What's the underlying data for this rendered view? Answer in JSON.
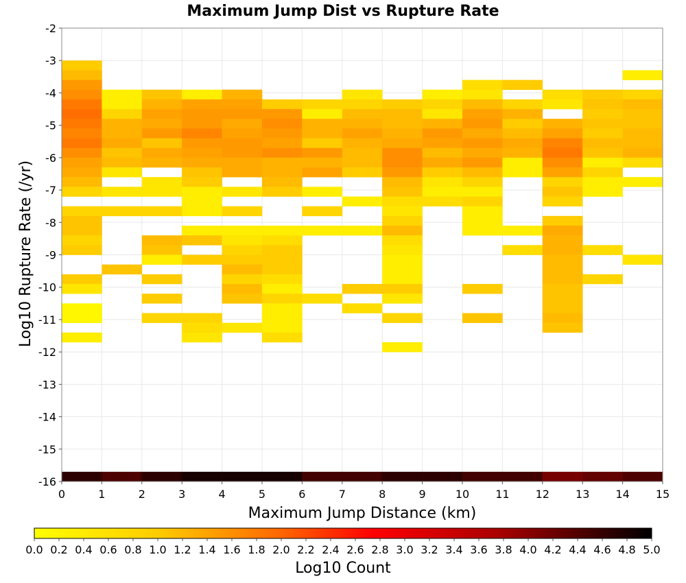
{
  "chart_data": {
    "type": "heatmap",
    "title": "Maximum Jump Dist vs Rupture Rate",
    "xlabel": "Maximum Jump Distance (km)",
    "ylabel": "Log10 Rupture Rate (/yr)",
    "xlim": [
      0,
      15
    ],
    "ylim": [
      -16,
      -2
    ],
    "x_ticks": [
      0,
      1,
      2,
      3,
      4,
      5,
      6,
      7,
      8,
      9,
      10,
      11,
      12,
      13,
      14,
      15
    ],
    "y_ticks": [
      -16,
      -15,
      -14,
      -13,
      -12,
      -11,
      -10,
      -9,
      -8,
      -7,
      -6,
      -5,
      -4,
      -3,
      -2
    ],
    "x_bin_width": 1,
    "y_bin_height": 0.3,
    "grid": true,
    "colorbar": {
      "label": "Log10 Count",
      "range": [
        0.0,
        5.0
      ],
      "ticks": [
        "0.0",
        "0.2",
        "0.4",
        "0.6",
        "0.8",
        "1.0",
        "1.2",
        "1.4",
        "1.6",
        "1.8",
        "2.0",
        "2.2",
        "2.4",
        "2.6",
        "2.8",
        "3.0",
        "3.2",
        "3.4",
        "3.6",
        "3.8",
        "4.0",
        "4.2",
        "4.4",
        "4.6",
        "4.8",
        "5.0"
      ],
      "placement": "bottom",
      "colors": [
        "#ffff00",
        "#ff9900",
        "#ff0000",
        "#990000",
        "#000000"
      ]
    },
    "cell_fields": [
      "x_start",
      "y_start",
      "log10_count"
    ],
    "cells": [
      [
        0,
        -3.3,
        0.6
      ],
      [
        0,
        -3.6,
        0.8
      ],
      [
        0,
        -3.9,
        1.2
      ],
      [
        0,
        -4.2,
        1.3
      ],
      [
        0,
        -4.5,
        1.5
      ],
      [
        0,
        -4.8,
        1.6
      ],
      [
        0,
        -5.1,
        1.5
      ],
      [
        0,
        -5.4,
        1.4
      ],
      [
        0,
        -5.7,
        1.5
      ],
      [
        0,
        -6.0,
        1.3
      ],
      [
        0,
        -6.3,
        1.1
      ],
      [
        0,
        -6.6,
        1.0
      ],
      [
        0,
        -6.9,
        0.8
      ],
      [
        0,
        -7.2,
        0.5
      ],
      [
        0,
        -7.8,
        0.5
      ],
      [
        0,
        -8.1,
        0.7
      ],
      [
        0,
        -8.4,
        0.7
      ],
      [
        0,
        -8.7,
        0.5
      ],
      [
        0,
        -9.0,
        0.6
      ],
      [
        0,
        -9.9,
        0.6
      ],
      [
        0,
        -10.2,
        0.3
      ],
      [
        0,
        -10.8,
        0.1
      ],
      [
        0,
        -11.1,
        0.1
      ],
      [
        0,
        -11.7,
        0.2
      ],
      [
        0,
        -16.0,
        4.6
      ],
      [
        1,
        -4.2,
        0.2
      ],
      [
        1,
        -4.5,
        0.2
      ],
      [
        1,
        -4.8,
        0.5
      ],
      [
        1,
        -5.1,
        0.9
      ],
      [
        1,
        -5.4,
        0.9
      ],
      [
        1,
        -5.7,
        1.0
      ],
      [
        1,
        -6.0,
        0.7
      ],
      [
        1,
        -6.3,
        0.8
      ],
      [
        1,
        -6.6,
        0.3
      ],
      [
        1,
        -7.2,
        0.3
      ],
      [
        1,
        -7.8,
        0.5
      ],
      [
        1,
        -9.6,
        0.7
      ],
      [
        1,
        -16.0,
        4.3
      ],
      [
        2,
        -4.2,
        0.7
      ],
      [
        2,
        -4.5,
        0.9
      ],
      [
        2,
        -4.8,
        1.1
      ],
      [
        2,
        -5.1,
        1.0
      ],
      [
        2,
        -5.4,
        1.2
      ],
      [
        2,
        -5.7,
        0.7
      ],
      [
        2,
        -6.0,
        1.0
      ],
      [
        2,
        -6.3,
        0.9
      ],
      [
        2,
        -6.9,
        0.3
      ],
      [
        2,
        -7.2,
        0.3
      ],
      [
        2,
        -7.8,
        0.5
      ],
      [
        2,
        -8.7,
        0.8
      ],
      [
        2,
        -9.0,
        0.7
      ],
      [
        2,
        -9.3,
        0.2
      ],
      [
        2,
        -9.9,
        0.6
      ],
      [
        2,
        -10.5,
        0.6
      ],
      [
        2,
        -11.1,
        0.5
      ],
      [
        2,
        -16.0,
        4.6
      ],
      [
        3,
        -4.2,
        0.2
      ],
      [
        3,
        -4.5,
        1.1
      ],
      [
        3,
        -4.8,
        1.2
      ],
      [
        3,
        -5.1,
        1.2
      ],
      [
        3,
        -5.4,
        1.4
      ],
      [
        3,
        -5.7,
        1.2
      ],
      [
        3,
        -6.0,
        1.1
      ],
      [
        3,
        -6.3,
        1.0
      ],
      [
        3,
        -6.6,
        0.7
      ],
      [
        3,
        -6.9,
        0.6
      ],
      [
        3,
        -7.2,
        0.2
      ],
      [
        3,
        -7.5,
        0.2
      ],
      [
        3,
        -7.8,
        0.2
      ],
      [
        3,
        -8.4,
        0.2
      ],
      [
        3,
        -8.7,
        0.7
      ],
      [
        3,
        -9.3,
        0.6
      ],
      [
        3,
        -11.1,
        0.5
      ],
      [
        3,
        -11.4,
        0.4
      ],
      [
        3,
        -11.7,
        0.3
      ],
      [
        3,
        -16.0,
        4.8
      ],
      [
        4,
        -4.2,
        0.9
      ],
      [
        4,
        -4.5,
        1.1
      ],
      [
        4,
        -4.8,
        1.2
      ],
      [
        4,
        -5.1,
        1.0
      ],
      [
        4,
        -5.4,
        1.1
      ],
      [
        4,
        -5.7,
        1.2
      ],
      [
        4,
        -6.0,
        1.2
      ],
      [
        4,
        -6.3,
        1.0
      ],
      [
        4,
        -6.6,
        1.0
      ],
      [
        4,
        -7.2,
        0.3
      ],
      [
        4,
        -7.8,
        0.5
      ],
      [
        4,
        -8.4,
        0.2
      ],
      [
        4,
        -8.7,
        0.3
      ],
      [
        4,
        -9.0,
        0.5
      ],
      [
        4,
        -9.3,
        0.6
      ],
      [
        4,
        -9.6,
        0.8
      ],
      [
        4,
        -9.9,
        0.5
      ],
      [
        4,
        -10.2,
        0.8
      ],
      [
        4,
        -10.5,
        0.7
      ],
      [
        4,
        -11.4,
        0.3
      ],
      [
        4,
        -16.0,
        4.8
      ],
      [
        5,
        -4.5,
        0.6
      ],
      [
        5,
        -4.8,
        1.2
      ],
      [
        5,
        -5.1,
        1.3
      ],
      [
        5,
        -5.4,
        1.2
      ],
      [
        5,
        -5.7,
        1.1
      ],
      [
        5,
        -6.0,
        1.3
      ],
      [
        5,
        -6.3,
        0.9
      ],
      [
        5,
        -6.6,
        0.9
      ],
      [
        5,
        -6.9,
        0.8
      ],
      [
        5,
        -7.2,
        0.6
      ],
      [
        5,
        -8.4,
        0.2
      ],
      [
        5,
        -8.7,
        0.4
      ],
      [
        5,
        -9.0,
        0.6
      ],
      [
        5,
        -9.3,
        0.6
      ],
      [
        5,
        -9.6,
        0.6
      ],
      [
        5,
        -9.9,
        0.4
      ],
      [
        5,
        -10.2,
        0.2
      ],
      [
        5,
        -10.5,
        0.5
      ],
      [
        5,
        -10.8,
        0.2
      ],
      [
        5,
        -11.1,
        0.2
      ],
      [
        5,
        -11.4,
        0.2
      ],
      [
        5,
        -11.7,
        0.4
      ],
      [
        5,
        -16.0,
        4.8
      ],
      [
        6,
        -4.5,
        0.5
      ],
      [
        6,
        -4.8,
        0.2
      ],
      [
        6,
        -5.1,
        0.9
      ],
      [
        6,
        -5.4,
        0.9
      ],
      [
        6,
        -5.7,
        0.6
      ],
      [
        6,
        -6.0,
        1.2
      ],
      [
        6,
        -6.3,
        0.9
      ],
      [
        6,
        -6.6,
        1.1
      ],
      [
        6,
        -7.2,
        0.2
      ],
      [
        6,
        -7.8,
        0.5
      ],
      [
        6,
        -8.4,
        0.2
      ],
      [
        6,
        -10.5,
        0.4
      ],
      [
        6,
        -16.0,
        4.4
      ],
      [
        7,
        -4.2,
        0.3
      ],
      [
        7,
        -4.5,
        0.5
      ],
      [
        7,
        -4.8,
        0.8
      ],
      [
        7,
        -5.1,
        0.9
      ],
      [
        7,
        -5.4,
        1.1
      ],
      [
        7,
        -5.7,
        0.9
      ],
      [
        7,
        -6.0,
        0.8
      ],
      [
        7,
        -6.3,
        0.8
      ],
      [
        7,
        -6.6,
        0.6
      ],
      [
        7,
        -7.5,
        0.2
      ],
      [
        7,
        -8.4,
        0.2
      ],
      [
        7,
        -10.2,
        0.6
      ],
      [
        7,
        -10.8,
        0.4
      ],
      [
        7,
        -16.0,
        4.4
      ],
      [
        8,
        -4.5,
        0.6
      ],
      [
        8,
        -4.8,
        0.8
      ],
      [
        8,
        -5.1,
        0.8
      ],
      [
        8,
        -5.4,
        0.9
      ],
      [
        8,
        -5.7,
        1.0
      ],
      [
        8,
        -6.0,
        1.3
      ],
      [
        8,
        -6.3,
        1.3
      ],
      [
        8,
        -6.6,
        1.2
      ],
      [
        8,
        -6.9,
        0.8
      ],
      [
        8,
        -7.2,
        0.7
      ],
      [
        8,
        -7.5,
        0.4
      ],
      [
        8,
        -7.8,
        0.3
      ],
      [
        8,
        -8.1,
        0.5
      ],
      [
        8,
        -8.4,
        0.8
      ],
      [
        8,
        -8.7,
        0.4
      ],
      [
        8,
        -9.0,
        0.3
      ],
      [
        8,
        -9.3,
        0.2
      ],
      [
        8,
        -9.6,
        0.2
      ],
      [
        8,
        -9.9,
        0.2
      ],
      [
        8,
        -10.2,
        0.6
      ],
      [
        8,
        -10.5,
        0.3
      ],
      [
        8,
        -11.1,
        0.5
      ],
      [
        8,
        -12.0,
        0.2
      ],
      [
        8,
        -16.0,
        4.6
      ],
      [
        9,
        -4.2,
        0.2
      ],
      [
        9,
        -4.5,
        0.5
      ],
      [
        9,
        -4.8,
        0.3
      ],
      [
        9,
        -5.1,
        0.9
      ],
      [
        9,
        -5.4,
        1.2
      ],
      [
        9,
        -5.7,
        1.1
      ],
      [
        9,
        -6.0,
        0.8
      ],
      [
        9,
        -6.3,
        1.0
      ],
      [
        9,
        -6.6,
        0.6
      ],
      [
        9,
        -6.9,
        0.3
      ],
      [
        9,
        -7.2,
        0.2
      ],
      [
        9,
        -7.5,
        0.4
      ],
      [
        9,
        -16.0,
        4.6
      ],
      [
        10,
        -3.9,
        0.4
      ],
      [
        10,
        -4.2,
        0.3
      ],
      [
        10,
        -4.5,
        0.8
      ],
      [
        10,
        -4.8,
        1.1
      ],
      [
        10,
        -5.1,
        1.2
      ],
      [
        10,
        -5.4,
        1.0
      ],
      [
        10,
        -5.7,
        1.2
      ],
      [
        10,
        -6.0,
        1.0
      ],
      [
        10,
        -6.3,
        1.2
      ],
      [
        10,
        -6.6,
        0.8
      ],
      [
        10,
        -6.9,
        0.5
      ],
      [
        10,
        -7.2,
        0.2
      ],
      [
        10,
        -7.5,
        0.5
      ],
      [
        10,
        -7.8,
        0.2
      ],
      [
        10,
        -8.1,
        0.2
      ],
      [
        10,
        -8.4,
        0.2
      ],
      [
        10,
        -10.2,
        0.6
      ],
      [
        10,
        -11.1,
        0.7
      ],
      [
        10,
        -16.0,
        4.4
      ],
      [
        11,
        -3.9,
        0.6
      ],
      [
        11,
        -4.5,
        0.5
      ],
      [
        11,
        -4.8,
        0.9
      ],
      [
        11,
        -5.1,
        0.6
      ],
      [
        11,
        -5.4,
        0.8
      ],
      [
        11,
        -5.7,
        1.0
      ],
      [
        11,
        -6.0,
        0.9
      ],
      [
        11,
        -6.3,
        0.2
      ],
      [
        11,
        -6.6,
        0.2
      ],
      [
        11,
        -8.4,
        0.2
      ],
      [
        11,
        -9.0,
        0.4
      ],
      [
        11,
        -16.0,
        4.4
      ],
      [
        12,
        -4.2,
        0.4
      ],
      [
        12,
        -4.5,
        0.3
      ],
      [
        12,
        -5.1,
        0.9
      ],
      [
        12,
        -5.4,
        1.1
      ],
      [
        12,
        -5.7,
        1.4
      ],
      [
        12,
        -6.0,
        1.5
      ],
      [
        12,
        -6.3,
        1.3
      ],
      [
        12,
        -6.6,
        1.1
      ],
      [
        12,
        -6.9,
        0.5
      ],
      [
        12,
        -7.2,
        0.7
      ],
      [
        12,
        -7.5,
        0.5
      ],
      [
        12,
        -8.1,
        0.6
      ],
      [
        12,
        -8.4,
        1.0
      ],
      [
        12,
        -8.7,
        0.9
      ],
      [
        12,
        -9.0,
        0.9
      ],
      [
        12,
        -9.3,
        0.8
      ],
      [
        12,
        -9.6,
        0.8
      ],
      [
        12,
        -9.9,
        0.8
      ],
      [
        12,
        -10.2,
        0.7
      ],
      [
        12,
        -10.5,
        0.7
      ],
      [
        12,
        -10.8,
        0.7
      ],
      [
        12,
        -11.1,
        0.8
      ],
      [
        12,
        -11.4,
        0.7
      ],
      [
        12,
        -16.0,
        3.9
      ],
      [
        13,
        -4.2,
        0.6
      ],
      [
        13,
        -4.5,
        0.7
      ],
      [
        13,
        -4.8,
        0.6
      ],
      [
        13,
        -5.1,
        0.7
      ],
      [
        13,
        -5.4,
        0.6
      ],
      [
        13,
        -5.7,
        0.8
      ],
      [
        13,
        -6.0,
        0.7
      ],
      [
        13,
        -6.3,
        0.2
      ],
      [
        13,
        -6.6,
        0.5
      ],
      [
        13,
        -6.9,
        0.2
      ],
      [
        13,
        -7.2,
        0.2
      ],
      [
        13,
        -9.0,
        0.4
      ],
      [
        13,
        -9.9,
        0.5
      ],
      [
        13,
        -16.0,
        4.1
      ],
      [
        14,
        -3.6,
        0.2
      ],
      [
        14,
        -4.2,
        0.5
      ],
      [
        14,
        -4.5,
        0.8
      ],
      [
        14,
        -4.8,
        0.7
      ],
      [
        14,
        -5.1,
        0.7
      ],
      [
        14,
        -5.4,
        0.8
      ],
      [
        14,
        -5.7,
        0.8
      ],
      [
        14,
        -6.0,
        0.9
      ],
      [
        14,
        -6.3,
        0.4
      ],
      [
        14,
        -6.9,
        0.2
      ],
      [
        14,
        -9.3,
        0.3
      ],
      [
        14,
        -16.0,
        4.3
      ]
    ]
  }
}
